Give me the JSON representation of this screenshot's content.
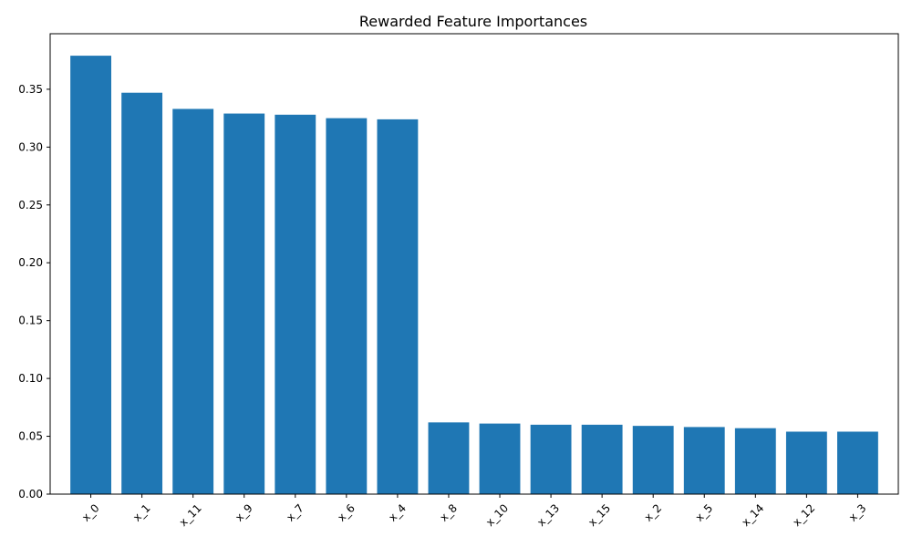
{
  "chart_data": {
    "type": "bar",
    "title": "Rewarded Feature Importances",
    "xlabel": "",
    "ylabel": "",
    "categories": [
      "x_0",
      "x_1",
      "x_11",
      "x_9",
      "x_7",
      "x_6",
      "x_4",
      "x_8",
      "x_10",
      "x_13",
      "x_15",
      "x_2",
      "x_5",
      "x_14",
      "x_12",
      "x_3"
    ],
    "values": [
      0.379,
      0.347,
      0.333,
      0.329,
      0.328,
      0.325,
      0.324,
      0.062,
      0.061,
      0.06,
      0.06,
      0.059,
      0.058,
      0.057,
      0.054,
      0.054
    ],
    "ylim": [
      0,
      0.398
    ],
    "yticks": [
      0.0,
      0.05,
      0.1,
      0.15,
      0.2,
      0.25,
      0.3,
      0.35
    ],
    "ytick_labels": [
      "0.00",
      "0.05",
      "0.10",
      "0.15",
      "0.20",
      "0.25",
      "0.30",
      "0.35"
    ],
    "grid": false,
    "bar_color": "#1f77b4"
  }
}
